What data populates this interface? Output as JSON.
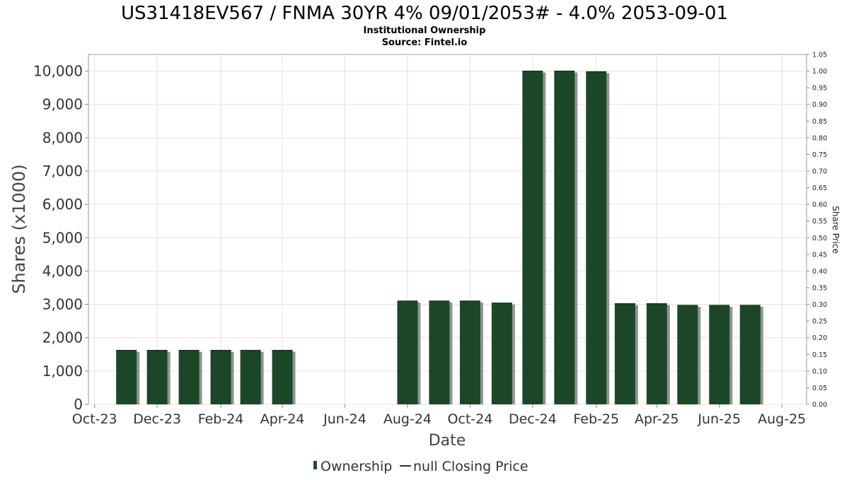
{
  "chart_data": {
    "type": "bar",
    "title": "US31418EV567 / FNMA 30YR 4% 09/01/2053# - 4.0% 2053-09-01",
    "subtitle_lines": [
      "Institutional Ownership",
      "Source: Fintel.io"
    ],
    "xlabel": "Date",
    "ylabel": "Shares (x1000)",
    "y2label": "Share Price",
    "ylim": [
      0,
      10500
    ],
    "y_ticks": [
      "0",
      "1,000",
      "2,000",
      "3,000",
      "4,000",
      "5,000",
      "6,000",
      "7,000",
      "8,000",
      "9,000",
      "10,000"
    ],
    "y2lim": [
      0,
      1.05
    ],
    "y2_ticks": [
      "0.00",
      "0.05",
      "0.10",
      "0.15",
      "0.20",
      "0.25",
      "0.30",
      "0.35",
      "0.40",
      "0.45",
      "0.50",
      "0.55",
      "0.60",
      "0.65",
      "0.70",
      "0.75",
      "0.80",
      "0.85",
      "0.90",
      "0.95",
      "1.00",
      "1.05"
    ],
    "x_range": [
      "2023-09-25",
      "2025-08-25"
    ],
    "x_ticks": [
      {
        "label": "Oct-23",
        "date": "2023-10-01"
      },
      {
        "label": "Dec-23",
        "date": "2023-12-01"
      },
      {
        "label": "Feb-24",
        "date": "2024-02-01"
      },
      {
        "label": "Apr-24",
        "date": "2024-04-01"
      },
      {
        "label": "Jun-24",
        "date": "2024-06-01"
      },
      {
        "label": "Aug-24",
        "date": "2024-08-01"
      },
      {
        "label": "Oct-24",
        "date": "2024-10-01"
      },
      {
        "label": "Dec-24",
        "date": "2024-12-01"
      },
      {
        "label": "Feb-25",
        "date": "2025-02-01"
      },
      {
        "label": "Apr-25",
        "date": "2025-04-01"
      },
      {
        "label": "Jun-25",
        "date": "2025-06-01"
      },
      {
        "label": "Aug-25",
        "date": "2025-08-01"
      }
    ],
    "series": [
      {
        "name": "Ownership",
        "color": "#1f4d2b",
        "x": [
          "2023-11-01",
          "2023-12-01",
          "2024-01-01",
          "2024-02-01",
          "2024-03-01",
          "2024-04-01",
          "2024-08-01",
          "2024-09-01",
          "2024-10-01",
          "2024-11-01",
          "2024-12-01",
          "2025-01-01",
          "2025-02-01",
          "2025-03-01",
          "2025-04-01",
          "2025-05-01",
          "2025-06-01",
          "2025-07-01"
        ],
        "values": [
          1620,
          1620,
          1620,
          1620,
          1620,
          1620,
          3100,
          3100,
          3100,
          3040,
          10000,
          10000,
          9980,
          3020,
          3020,
          2970,
          2970,
          2970
        ]
      },
      {
        "name": "null Closing Price",
        "color": "#333333",
        "values": []
      }
    ],
    "legend_position": "bottom-center",
    "grid": true
  }
}
